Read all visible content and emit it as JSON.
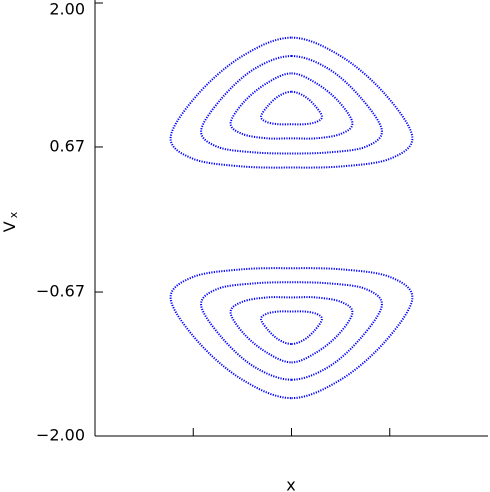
{
  "chart_data": {
    "type": "orbit",
    "xlabel": "x",
    "ylabel": "V",
    "ylabel_sub": "x",
    "xlim": [
      -2,
      2
    ],
    "xticks": [
      -1,
      0,
      1
    ],
    "ylim": [
      -2,
      2
    ],
    "yticks": [
      {
        "value": -2,
        "label": "−2.00"
      },
      {
        "value": -0.67,
        "label": "−0.67"
      },
      {
        "value": 0.67,
        "label": "0.67"
      },
      {
        "value": 2,
        "label": "2.00"
      }
    ],
    "series": [
      {
        "color": "#0000ff",
        "x": [
          0,
          0.5,
          0.95,
          1.23,
          1.0,
          0.5,
          0,
          -0.5,
          -1.0,
          -1.23,
          -0.95,
          -0.5
        ],
        "values": [
          1.68,
          1.51,
          1.16,
          0.76,
          0.56,
          0.49,
          0.48,
          0.49,
          0.56,
          0.76,
          1.16,
          1.51
        ]
      },
      {
        "color": "#0000ff",
        "x": [
          0,
          0.38,
          0.71,
          0.92,
          0.75,
          0.38,
          0,
          -0.38,
          -0.75,
          -0.92,
          -0.71,
          -0.38
        ],
        "values": [
          1.51,
          1.39,
          1.12,
          0.82,
          0.67,
          0.62,
          0.61,
          0.62,
          0.67,
          0.82,
          1.12,
          1.39
        ]
      },
      {
        "color": "#0000ff",
        "x": [
          0,
          0.25,
          0.48,
          0.62,
          0.5,
          0.25,
          0,
          -0.25,
          -0.5,
          -0.62,
          -0.48,
          -0.25
        ],
        "values": [
          1.35,
          1.26,
          1.09,
          0.89,
          0.79,
          0.75,
          0.75,
          0.75,
          0.79,
          0.89,
          1.09,
          1.26
        ]
      },
      {
        "color": "#0000ff",
        "x": [
          0,
          0.13,
          0.24,
          0.31,
          0.25,
          0.13,
          0,
          -0.13,
          -0.25,
          -0.31,
          -0.24,
          -0.13
        ],
        "values": [
          1.18,
          1.14,
          1.05,
          0.95,
          0.9,
          0.88,
          0.88,
          0.88,
          0.9,
          0.95,
          1.05,
          1.14
        ]
      },
      {
        "color": "#0000ff",
        "x": [
          0,
          0.5,
          0.95,
          1.23,
          1.0,
          0.5,
          0,
          -0.5,
          -1.0,
          -1.23,
          -0.95,
          -0.5
        ],
        "values": [
          -1.65,
          -1.48,
          -1.13,
          -0.73,
          -0.53,
          -0.46,
          -0.45,
          -0.46,
          -0.53,
          -0.73,
          -1.13,
          -1.48
        ]
      },
      {
        "color": "#0000ff",
        "x": [
          0,
          0.38,
          0.71,
          0.92,
          0.75,
          0.38,
          0,
          -0.38,
          -0.75,
          -0.92,
          -0.71,
          -0.38
        ],
        "values": [
          -1.48,
          -1.36,
          -1.09,
          -0.79,
          -0.64,
          -0.59,
          -0.58,
          -0.59,
          -0.64,
          -0.79,
          -1.09,
          -1.36
        ]
      },
      {
        "color": "#0000ff",
        "x": [
          0,
          0.25,
          0.48,
          0.62,
          0.5,
          0.25,
          0,
          -0.25,
          -0.5,
          -0.62,
          -0.48,
          -0.25
        ],
        "values": [
          -1.32,
          -1.23,
          -1.06,
          -0.86,
          -0.76,
          -0.72,
          -0.72,
          -0.72,
          -0.76,
          -0.86,
          -1.06,
          -1.23
        ]
      },
      {
        "color": "#0000ff",
        "x": [
          0,
          0.13,
          0.24,
          0.31,
          0.25,
          0.13,
          0,
          -0.13,
          -0.25,
          -0.31,
          -0.24,
          -0.13
        ],
        "values": [
          -1.15,
          -1.11,
          -1.02,
          -0.92,
          -0.87,
          -0.85,
          -0.85,
          -0.85,
          -0.87,
          -0.92,
          -1.02,
          -1.11
        ]
      }
    ]
  }
}
